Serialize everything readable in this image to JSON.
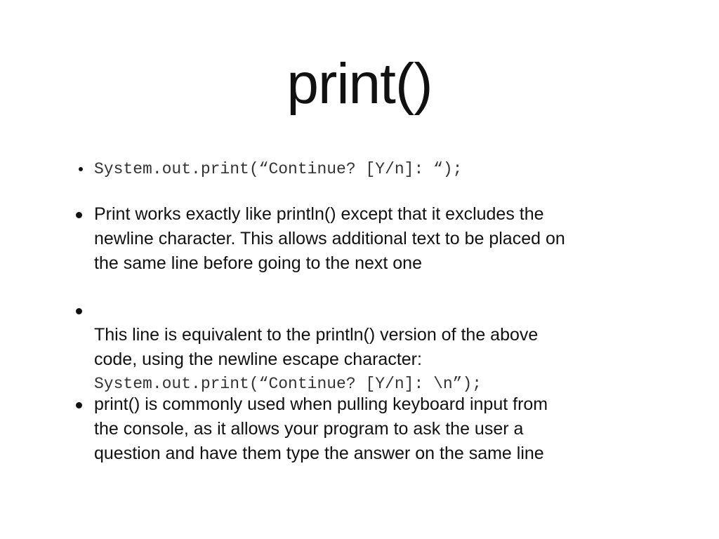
{
  "slide": {
    "title": "print()",
    "bullets": [
      {
        "code": "System.out.print(“Continue? [Y/n]: “);"
      },
      {
        "text": "Print works exactly like println() except that it excludes the\nnewline character. This allows additional text to be placed on\nthe same line before going to the next one"
      },
      {
        "text": "This line is equivalent to the println() version of the above\ncode, using the newline escape character:",
        "code": "System.out.print(“Continue? [Y/n]: \\n”);"
      },
      {
        "text": "print() is commonly used when pulling keyboard input from\nthe console, as it allows your program to ask the user a\nquestion and have them type the answer on the same line"
      }
    ]
  }
}
